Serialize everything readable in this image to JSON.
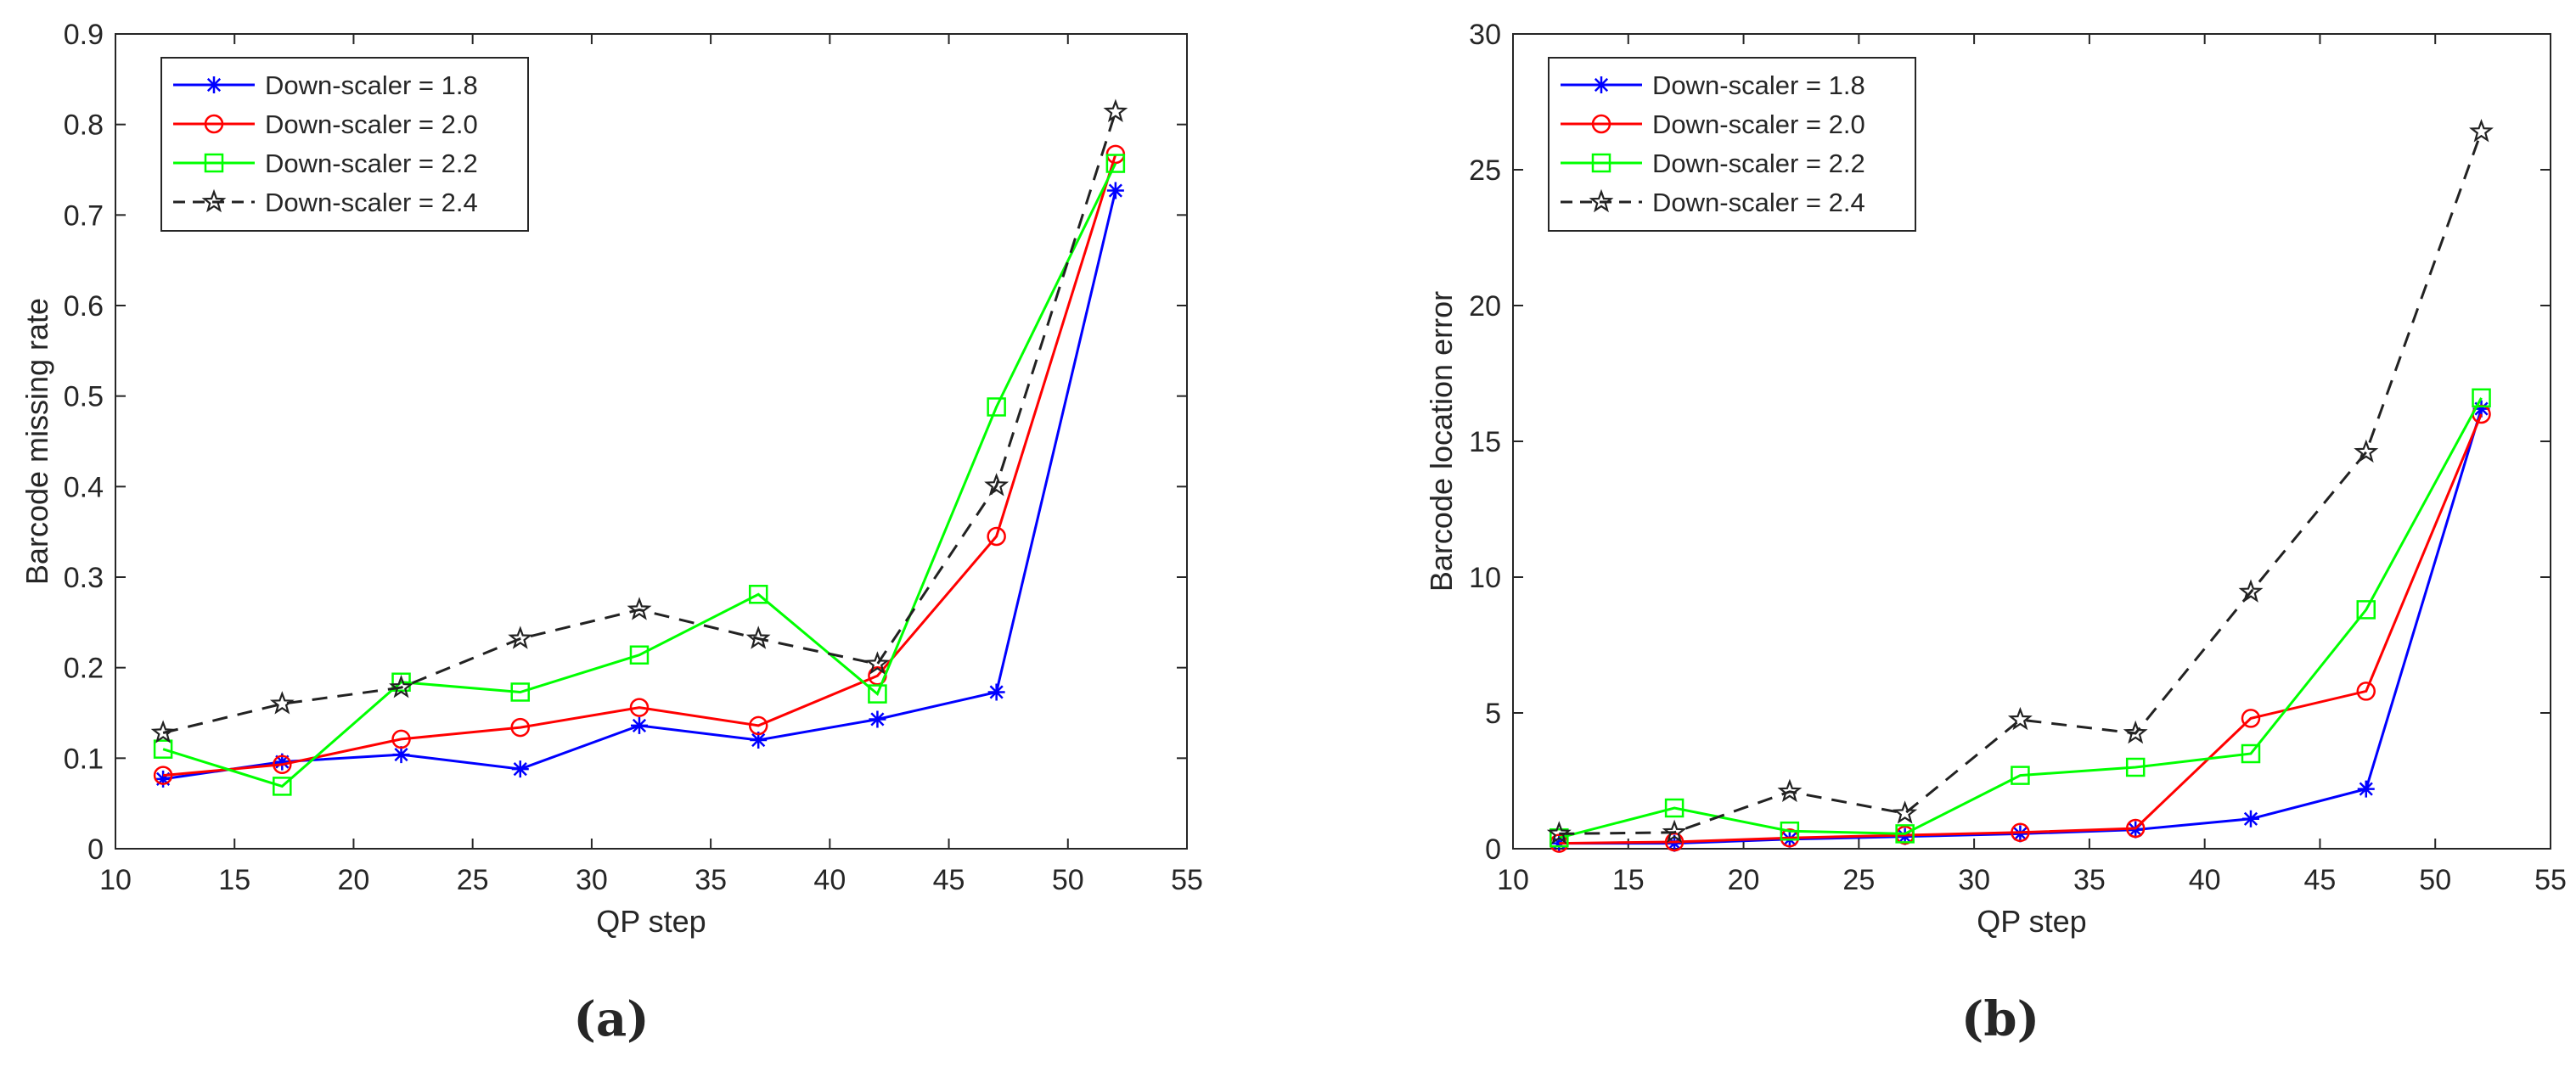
{
  "chart_data": [
    {
      "type": "line",
      "panel_label": "(a)",
      "xlabel": "QP step",
      "ylabel": "Barcode missing rate",
      "xlim": [
        10,
        55
      ],
      "ylim": [
        0,
        0.9
      ],
      "xticks": [
        10,
        15,
        20,
        25,
        30,
        35,
        40,
        45,
        50,
        55
      ],
      "yticks": [
        0,
        0.1,
        0.2,
        0.3,
        0.4,
        0.5,
        0.6,
        0.7,
        0.8,
        0.9
      ],
      "xtick_labels": [
        "10",
        "15",
        "20",
        "25",
        "30",
        "35",
        "40",
        "45",
        "50",
        "55"
      ],
      "ytick_labels": [
        "0",
        "0.1",
        "0.2",
        "0.3",
        "0.4",
        "0.5",
        "0.6",
        "0.7",
        "0.8",
        "0.9"
      ],
      "legend_position": "top-left",
      "x": [
        12,
        17,
        22,
        27,
        32,
        37,
        42,
        47,
        52
      ],
      "series": [
        {
          "name": "Down-scaler = 1.8",
          "color": "#0000ff",
          "marker": "asterisk",
          "dash": "solid",
          "values": [
            0.077,
            0.096,
            0.104,
            0.088,
            0.136,
            0.12,
            0.143,
            0.173,
            0.727
          ]
        },
        {
          "name": "Down-scaler = 2.0",
          "color": "#ff0000",
          "marker": "circle",
          "dash": "solid",
          "values": [
            0.081,
            0.093,
            0.121,
            0.134,
            0.156,
            0.136,
            0.191,
            0.345,
            0.767
          ]
        },
        {
          "name": "Down-scaler = 2.2",
          "color": "#00ff00",
          "marker": "square",
          "dash": "solid",
          "values": [
            0.11,
            0.069,
            0.184,
            0.173,
            0.214,
            0.281,
            0.171,
            0.488,
            0.757
          ]
        },
        {
          "name": "Down-scaler = 2.4",
          "color": "#222222",
          "marker": "star",
          "dash": "dashed",
          "values": [
            0.128,
            0.16,
            0.178,
            0.232,
            0.264,
            0.232,
            0.204,
            0.401,
            0.814
          ]
        }
      ]
    },
    {
      "type": "line",
      "panel_label": "(b)",
      "xlabel": "QP step",
      "ylabel": "Barcode location error",
      "xlim": [
        10,
        55
      ],
      "ylim": [
        0,
        30
      ],
      "xticks": [
        10,
        15,
        20,
        25,
        30,
        35,
        40,
        45,
        50,
        55
      ],
      "yticks": [
        0,
        5,
        10,
        15,
        20,
        25,
        30
      ],
      "xtick_labels": [
        "10",
        "15",
        "20",
        "25",
        "30",
        "35",
        "40",
        "45",
        "50",
        "55"
      ],
      "ytick_labels": [
        "0",
        "5",
        "10",
        "15",
        "20",
        "25",
        "30"
      ],
      "legend_position": "top-left",
      "x": [
        12,
        17,
        22,
        27,
        32,
        37,
        42,
        47,
        52
      ],
      "series": [
        {
          "name": "Down-scaler = 1.8",
          "color": "#0000ff",
          "marker": "asterisk",
          "dash": "solid",
          "values": [
            0.2,
            0.2,
            0.35,
            0.45,
            0.55,
            0.7,
            1.1,
            2.2,
            16.2
          ]
        },
        {
          "name": "Down-scaler = 2.0",
          "color": "#ff0000",
          "marker": "circle",
          "dash": "solid",
          "values": [
            0.2,
            0.25,
            0.4,
            0.5,
            0.6,
            0.75,
            4.8,
            5.8,
            16.0
          ]
        },
        {
          "name": "Down-scaler = 2.2",
          "color": "#00ff00",
          "marker": "square",
          "dash": "solid",
          "values": [
            0.4,
            1.5,
            0.65,
            0.55,
            2.7,
            3.0,
            3.5,
            8.8,
            16.6
          ]
        },
        {
          "name": "Down-scaler = 2.4",
          "color": "#222222",
          "marker": "star",
          "dash": "dashed",
          "values": [
            0.55,
            0.6,
            2.1,
            1.3,
            4.75,
            4.25,
            9.45,
            14.6,
            26.4
          ]
        }
      ]
    }
  ]
}
